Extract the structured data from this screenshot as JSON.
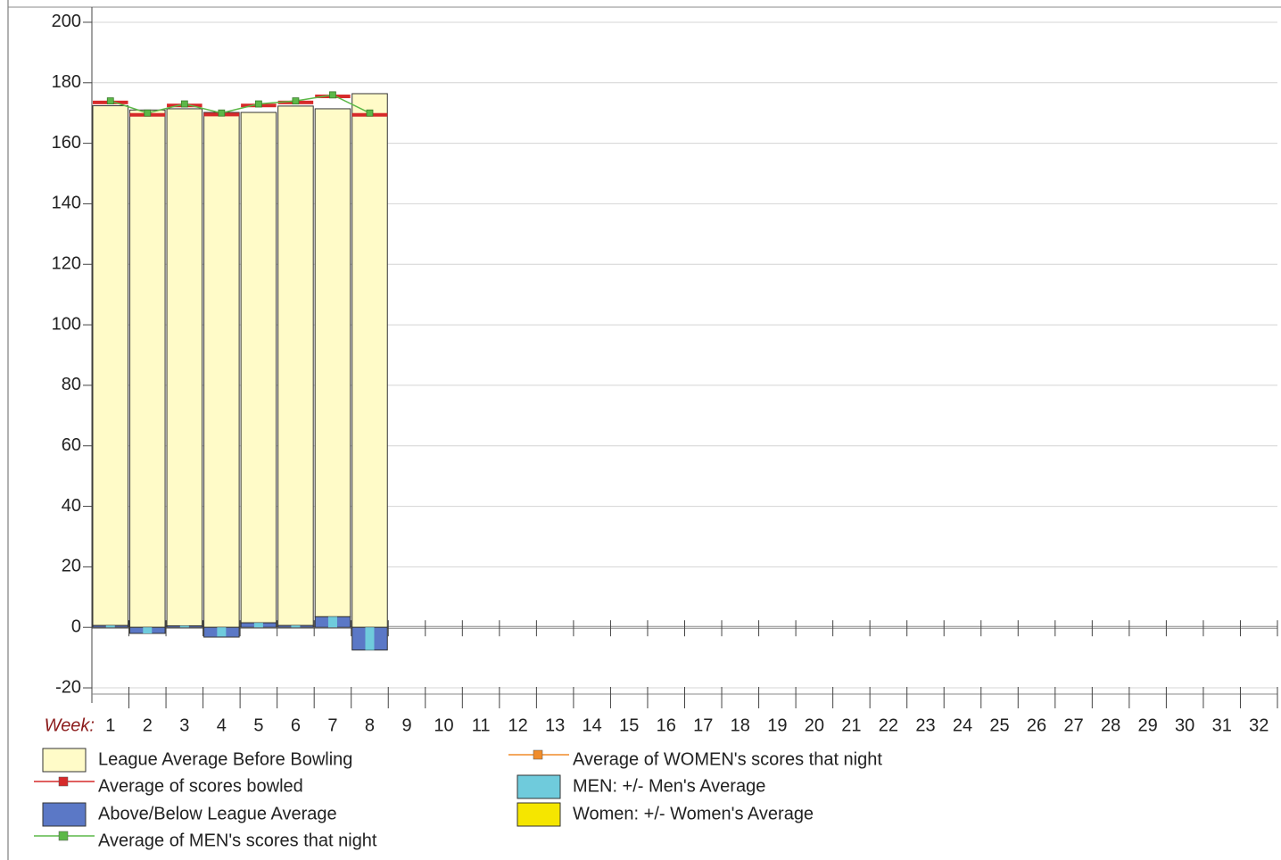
{
  "chart_data": {
    "type": "bar",
    "x_label": "Week:",
    "categories": [
      "1",
      "2",
      "3",
      "4",
      "5",
      "6",
      "7",
      "8",
      "9",
      "10",
      "11",
      "12",
      "13",
      "14",
      "15",
      "16",
      "17",
      "18",
      "19",
      "20",
      "21",
      "22",
      "23",
      "24",
      "25",
      "26",
      "27",
      "28",
      "29",
      "30",
      "31",
      "32"
    ],
    "ylim": [
      -25,
      205
    ],
    "yticks": [
      -20,
      0,
      20,
      40,
      60,
      80,
      100,
      120,
      140,
      160,
      180,
      200
    ],
    "grid": true,
    "legend": "bottom",
    "series": [
      {
        "name": "League Average Before Bowling",
        "kind": "bar",
        "stack": "above",
        "color": "#fffbc8",
        "values": [
          171.8,
          171,
          170.9,
          170.2,
          168.7,
          171.7,
          167.9,
          176.4,
          null,
          null,
          null,
          null,
          null,
          null,
          null,
          null,
          null,
          null,
          null,
          null,
          null,
          null,
          null,
          null,
          null,
          null,
          null,
          null,
          null,
          null,
          null,
          null
        ]
      },
      {
        "name": "Average of scores bowled",
        "kind": "step",
        "color": "#d62a2a",
        "values": [
          173.5,
          169.4,
          172.5,
          169.5,
          172.5,
          173.5,
          175.5,
          169.4,
          null,
          null,
          null,
          null,
          null,
          null,
          null,
          null,
          null,
          null,
          null,
          null,
          null,
          null,
          null,
          null,
          null,
          null,
          null,
          null,
          null,
          null,
          null,
          null
        ]
      },
      {
        "name": "Above/Below League Average",
        "kind": "bar",
        "stack": "base",
        "color": "#5b78c6",
        "values": [
          0.6,
          -2,
          0.5,
          -3.2,
          1.5,
          0.6,
          3.5,
          -7.5,
          null,
          null,
          null,
          null,
          null,
          null,
          null,
          null,
          null,
          null,
          null,
          null,
          null,
          null,
          null,
          null,
          null,
          null,
          null,
          null,
          null,
          null,
          null,
          null
        ]
      },
      {
        "name": "Average of MEN's scores that night",
        "kind": "line",
        "color": "#5cb848",
        "values": [
          174,
          170,
          173,
          170,
          173,
          174,
          176,
          170,
          null,
          null,
          null,
          null,
          null,
          null,
          null,
          null,
          null,
          null,
          null,
          null,
          null,
          null,
          null,
          null,
          null,
          null,
          null,
          null,
          null,
          null,
          null,
          null
        ]
      },
      {
        "name": "Average of WOMEN's scores that night",
        "kind": "line",
        "color": "#f08c2a",
        "values": [
          null,
          null,
          null,
          null,
          null,
          null,
          null,
          null,
          null,
          null,
          null,
          null,
          null,
          null,
          null,
          null,
          null,
          null,
          null,
          null,
          null,
          null,
          null,
          null,
          null,
          null,
          null,
          null,
          null,
          null,
          null,
          null
        ]
      },
      {
        "name": "MEN: +/- Men's Average",
        "kind": "narrow-bar",
        "color": "#6fcbdc",
        "values": [
          0.6,
          -2,
          0.5,
          -3,
          1.5,
          0.6,
          3.5,
          -7.5,
          null,
          null,
          null,
          null,
          null,
          null,
          null,
          null,
          null,
          null,
          null,
          null,
          null,
          null,
          null,
          null,
          null,
          null,
          null,
          null,
          null,
          null,
          null,
          null
        ]
      },
      {
        "name": "Women: +/- Women's Average",
        "kind": "narrow-bar",
        "color": "#f5e600",
        "values": [
          null,
          null,
          null,
          null,
          null,
          null,
          null,
          null,
          null,
          null,
          null,
          null,
          null,
          null,
          null,
          null,
          null,
          null,
          null,
          null,
          null,
          null,
          null,
          null,
          null,
          null,
          null,
          null,
          null,
          null,
          null,
          null
        ]
      }
    ]
  }
}
